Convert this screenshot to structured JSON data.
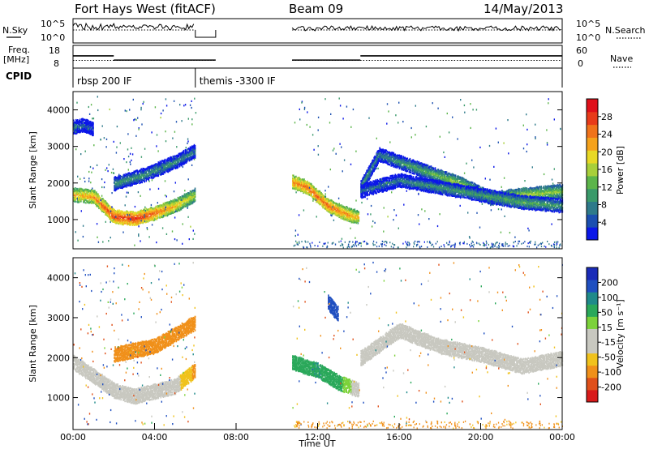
{
  "header": {
    "station": "Fort Hays West (fitACF)",
    "beam": "Beam 09",
    "date": "14/May/2013"
  },
  "strips": {
    "nsky_label": "N.Sky",
    "nsearch_label": "N.Search",
    "nsky_ticks": [
      "10^5",
      "10^0"
    ],
    "nsearch_ticks": [
      "10^5",
      "10^0"
    ],
    "freq_label_1": "Freq.",
    "freq_label_2": "[MHz]",
    "freq_ticks": [
      "18",
      "8"
    ],
    "nave_label": "Nave",
    "nave_ticks": [
      "60",
      "0"
    ],
    "cpid_label": "CPID",
    "cpid_programs": [
      {
        "name": "rbsp 200 IF",
        "start_h": 0,
        "end_h": 6
      },
      {
        "name": "themis -3300 IF",
        "start_h": 6,
        "end_h": 24
      }
    ],
    "freq_mhz_segments": [
      {
        "start_h": 0,
        "end_h": 2,
        "value": 13.8
      },
      {
        "start_h": 2,
        "end_h": 7,
        "value": 11.8
      },
      {
        "start_h": 10.75,
        "end_h": 14.1,
        "value": 11.8
      },
      {
        "start_h": 14.1,
        "end_h": 24,
        "value": 13.8
      }
    ],
    "nave_segments": [
      {
        "start_h": 0,
        "end_h": 2,
        "value": 22
      },
      {
        "start_h": 2,
        "end_h": 7,
        "value": 22
      },
      {
        "start_h": 10.75,
        "end_h": 24,
        "value": 22
      }
    ]
  },
  "colorbars": {
    "power": {
      "label": "Power [dB]",
      "ticks": [
        "28",
        "24",
        "20",
        "16",
        "12",
        "8",
        "4"
      ],
      "colors": [
        "#0b17e8",
        "#1b4fb0",
        "#2e7a8a",
        "#3a9a6a",
        "#5cb54a",
        "#a8cf3a",
        "#e8d825",
        "#f5a21c",
        "#f0731b",
        "#e83b1a",
        "#e0101a"
      ]
    },
    "velocity": {
      "label": "Velocity [m s⁻¹]",
      "ticks": [
        "200",
        "100",
        "50",
        "15",
        "-15",
        "-50",
        "-100",
        "-200"
      ],
      "colors": [
        "#1a2bb8",
        "#1f4fc0",
        "#1f8a8a",
        "#2aa85a",
        "#7cd23a",
        "#c8c8c0",
        "#c8c8c0",
        "#f0c21c",
        "#f0901a",
        "#e0501a",
        "#d81a1a"
      ]
    }
  },
  "chart_data": [
    {
      "type": "heatmap",
      "title": "Power",
      "xlabel": "",
      "ylabel": "Slant Range [km]",
      "x_range_h": [
        0,
        24
      ],
      "ylim": [
        200,
        4500
      ],
      "y_ticks": [
        1000,
        2000,
        3000,
        4000
      ],
      "y_tick_labels": [
        "1000",
        "2000",
        "3000",
        "4000"
      ],
      "colorbar_range_db": [
        0,
        30
      ],
      "echo_bands": [
        {
          "name": "",
          "points": [
            [
              0,
              1700,
              20
            ],
            [
              1,
              1650,
              22
            ],
            [
              2,
              1100,
              26
            ],
            [
              3,
              1050,
              27
            ],
            [
              4,
              1200,
              24
            ],
            [
              5,
              1400,
              20
            ],
            [
              6,
              1700,
              16
            ]
          ]
        },
        {
          "name": "",
          "points": [
            [
              0,
              3550,
              8
            ],
            [
              0.5,
              3600,
              6
            ],
            [
              1,
              3500,
              5
            ]
          ]
        },
        {
          "name": "",
          "points": [
            [
              2,
              2000,
              10
            ],
            [
              3.5,
              2250,
              10
            ],
            [
              5,
              2600,
              9
            ],
            [
              6,
              2900,
              8
            ]
          ]
        },
        {
          "name": "",
          "points": [
            [
              10.75,
              2050,
              22
            ],
            [
              11.5,
              1900,
              24
            ],
            [
              12.5,
              1400,
              24
            ],
            [
              13.5,
              1150,
              22
            ],
            [
              14,
              1100,
              20
            ]
          ]
        },
        {
          "name": "",
          "points": [
            [
              14.1,
              1900,
              10
            ],
            [
              15,
              2800,
              8
            ],
            [
              16,
              2600,
              10
            ],
            [
              17.5,
              2300,
              12
            ],
            [
              19,
              2000,
              16
            ],
            [
              20.5,
              1600,
              14
            ],
            [
              22,
              1700,
              16
            ],
            [
              24,
              1800,
              14
            ]
          ]
        },
        {
          "name": "",
          "points": [
            [
              14.1,
              1800,
              6
            ],
            [
              16,
              2100,
              8
            ],
            [
              18,
              1900,
              10
            ],
            [
              20,
              1700,
              10
            ],
            [
              22,
              1500,
              12
            ],
            [
              24,
              1400,
              10
            ]
          ]
        }
      ]
    },
    {
      "type": "heatmap",
      "title": "Velocity",
      "xlabel": "Time UT",
      "ylabel": "Slant Range [km]",
      "x_range_h": [
        0,
        24
      ],
      "x_tick_labels": [
        "00:00",
        "04:00",
        "08:00",
        "12:00",
        "16:00",
        "20:00",
        "00:00"
      ],
      "ylim": [
        200,
        4500
      ],
      "y_ticks": [
        1000,
        2000,
        3000,
        4000
      ],
      "y_tick_labels": [
        "1000",
        "2000",
        "3000",
        "4000"
      ],
      "colorbar_range_ms": [
        -200,
        200
      ],
      "echo_bands": [
        {
          "name": "",
          "points": [
            [
              0,
              1900,
              0
            ],
            [
              2,
              1200,
              0
            ],
            [
              3,
              1050,
              -5
            ],
            [
              5,
              1300,
              0
            ],
            [
              6,
              1700,
              -60
            ]
          ]
        },
        {
          "name": "",
          "points": [
            [
              2,
              2100,
              -60
            ],
            [
              4,
              2300,
              -80
            ],
            [
              6,
              2900,
              -60
            ]
          ]
        },
        {
          "name": "",
          "points": [
            [
              10.75,
              1900,
              40
            ],
            [
              12,
              1700,
              50
            ],
            [
              13,
              1400,
              40
            ],
            [
              14,
              1200,
              0
            ]
          ]
        },
        {
          "name": "",
          "points": [
            [
              12.5,
              3400,
              150
            ],
            [
              13,
              3100,
              120
            ]
          ]
        },
        {
          "name": "",
          "points": [
            [
              14.1,
              2000,
              0
            ],
            [
              16,
              2700,
              0
            ],
            [
              18,
              2300,
              0
            ],
            [
              20,
              2100,
              0
            ],
            [
              22,
              1800,
              0
            ],
            [
              24,
              2000,
              0
            ]
          ]
        }
      ]
    }
  ]
}
